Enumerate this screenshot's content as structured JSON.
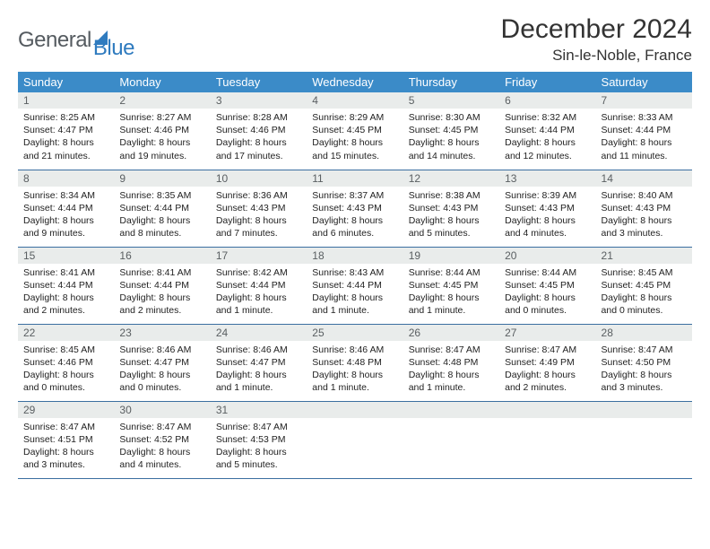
{
  "logo": {
    "part1": "General",
    "part2": "Blue"
  },
  "title": "December 2024",
  "location": "Sin-le-Noble, France",
  "headers": [
    "Sunday",
    "Monday",
    "Tuesday",
    "Wednesday",
    "Thursday",
    "Friday",
    "Saturday"
  ],
  "colors": {
    "header_bg": "#3b8bc8",
    "header_fg": "#ffffff",
    "daynum_bg": "#e9eceb",
    "daynum_fg": "#5a5f62",
    "rule": "#3b6fa0",
    "logo_gray": "#555b60",
    "logo_blue": "#2f7bbf"
  },
  "weeks": [
    [
      {
        "n": "1",
        "sr": "Sunrise: 8:25 AM",
        "ss": "Sunset: 4:47 PM",
        "d1": "Daylight: 8 hours",
        "d2": "and 21 minutes."
      },
      {
        "n": "2",
        "sr": "Sunrise: 8:27 AM",
        "ss": "Sunset: 4:46 PM",
        "d1": "Daylight: 8 hours",
        "d2": "and 19 minutes."
      },
      {
        "n": "3",
        "sr": "Sunrise: 8:28 AM",
        "ss": "Sunset: 4:46 PM",
        "d1": "Daylight: 8 hours",
        "d2": "and 17 minutes."
      },
      {
        "n": "4",
        "sr": "Sunrise: 8:29 AM",
        "ss": "Sunset: 4:45 PM",
        "d1": "Daylight: 8 hours",
        "d2": "and 15 minutes."
      },
      {
        "n": "5",
        "sr": "Sunrise: 8:30 AM",
        "ss": "Sunset: 4:45 PM",
        "d1": "Daylight: 8 hours",
        "d2": "and 14 minutes."
      },
      {
        "n": "6",
        "sr": "Sunrise: 8:32 AM",
        "ss": "Sunset: 4:44 PM",
        "d1": "Daylight: 8 hours",
        "d2": "and 12 minutes."
      },
      {
        "n": "7",
        "sr": "Sunrise: 8:33 AM",
        "ss": "Sunset: 4:44 PM",
        "d1": "Daylight: 8 hours",
        "d2": "and 11 minutes."
      }
    ],
    [
      {
        "n": "8",
        "sr": "Sunrise: 8:34 AM",
        "ss": "Sunset: 4:44 PM",
        "d1": "Daylight: 8 hours",
        "d2": "and 9 minutes."
      },
      {
        "n": "9",
        "sr": "Sunrise: 8:35 AM",
        "ss": "Sunset: 4:44 PM",
        "d1": "Daylight: 8 hours",
        "d2": "and 8 minutes."
      },
      {
        "n": "10",
        "sr": "Sunrise: 8:36 AM",
        "ss": "Sunset: 4:43 PM",
        "d1": "Daylight: 8 hours",
        "d2": "and 7 minutes."
      },
      {
        "n": "11",
        "sr": "Sunrise: 8:37 AM",
        "ss": "Sunset: 4:43 PM",
        "d1": "Daylight: 8 hours",
        "d2": "and 6 minutes."
      },
      {
        "n": "12",
        "sr": "Sunrise: 8:38 AM",
        "ss": "Sunset: 4:43 PM",
        "d1": "Daylight: 8 hours",
        "d2": "and 5 minutes."
      },
      {
        "n": "13",
        "sr": "Sunrise: 8:39 AM",
        "ss": "Sunset: 4:43 PM",
        "d1": "Daylight: 8 hours",
        "d2": "and 4 minutes."
      },
      {
        "n": "14",
        "sr": "Sunrise: 8:40 AM",
        "ss": "Sunset: 4:43 PM",
        "d1": "Daylight: 8 hours",
        "d2": "and 3 minutes."
      }
    ],
    [
      {
        "n": "15",
        "sr": "Sunrise: 8:41 AM",
        "ss": "Sunset: 4:44 PM",
        "d1": "Daylight: 8 hours",
        "d2": "and 2 minutes."
      },
      {
        "n": "16",
        "sr": "Sunrise: 8:41 AM",
        "ss": "Sunset: 4:44 PM",
        "d1": "Daylight: 8 hours",
        "d2": "and 2 minutes."
      },
      {
        "n": "17",
        "sr": "Sunrise: 8:42 AM",
        "ss": "Sunset: 4:44 PM",
        "d1": "Daylight: 8 hours",
        "d2": "and 1 minute."
      },
      {
        "n": "18",
        "sr": "Sunrise: 8:43 AM",
        "ss": "Sunset: 4:44 PM",
        "d1": "Daylight: 8 hours",
        "d2": "and 1 minute."
      },
      {
        "n": "19",
        "sr": "Sunrise: 8:44 AM",
        "ss": "Sunset: 4:45 PM",
        "d1": "Daylight: 8 hours",
        "d2": "and 1 minute."
      },
      {
        "n": "20",
        "sr": "Sunrise: 8:44 AM",
        "ss": "Sunset: 4:45 PM",
        "d1": "Daylight: 8 hours",
        "d2": "and 0 minutes."
      },
      {
        "n": "21",
        "sr": "Sunrise: 8:45 AM",
        "ss": "Sunset: 4:45 PM",
        "d1": "Daylight: 8 hours",
        "d2": "and 0 minutes."
      }
    ],
    [
      {
        "n": "22",
        "sr": "Sunrise: 8:45 AM",
        "ss": "Sunset: 4:46 PM",
        "d1": "Daylight: 8 hours",
        "d2": "and 0 minutes."
      },
      {
        "n": "23",
        "sr": "Sunrise: 8:46 AM",
        "ss": "Sunset: 4:47 PM",
        "d1": "Daylight: 8 hours",
        "d2": "and 0 minutes."
      },
      {
        "n": "24",
        "sr": "Sunrise: 8:46 AM",
        "ss": "Sunset: 4:47 PM",
        "d1": "Daylight: 8 hours",
        "d2": "and 1 minute."
      },
      {
        "n": "25",
        "sr": "Sunrise: 8:46 AM",
        "ss": "Sunset: 4:48 PM",
        "d1": "Daylight: 8 hours",
        "d2": "and 1 minute."
      },
      {
        "n": "26",
        "sr": "Sunrise: 8:47 AM",
        "ss": "Sunset: 4:48 PM",
        "d1": "Daylight: 8 hours",
        "d2": "and 1 minute."
      },
      {
        "n": "27",
        "sr": "Sunrise: 8:47 AM",
        "ss": "Sunset: 4:49 PM",
        "d1": "Daylight: 8 hours",
        "d2": "and 2 minutes."
      },
      {
        "n": "28",
        "sr": "Sunrise: 8:47 AM",
        "ss": "Sunset: 4:50 PM",
        "d1": "Daylight: 8 hours",
        "d2": "and 3 minutes."
      }
    ],
    [
      {
        "n": "29",
        "sr": "Sunrise: 8:47 AM",
        "ss": "Sunset: 4:51 PM",
        "d1": "Daylight: 8 hours",
        "d2": "and 3 minutes."
      },
      {
        "n": "30",
        "sr": "Sunrise: 8:47 AM",
        "ss": "Sunset: 4:52 PM",
        "d1": "Daylight: 8 hours",
        "d2": "and 4 minutes."
      },
      {
        "n": "31",
        "sr": "Sunrise: 8:47 AM",
        "ss": "Sunset: 4:53 PM",
        "d1": "Daylight: 8 hours",
        "d2": "and 5 minutes."
      },
      {
        "empty": true
      },
      {
        "empty": true
      },
      {
        "empty": true
      },
      {
        "empty": true
      }
    ]
  ]
}
